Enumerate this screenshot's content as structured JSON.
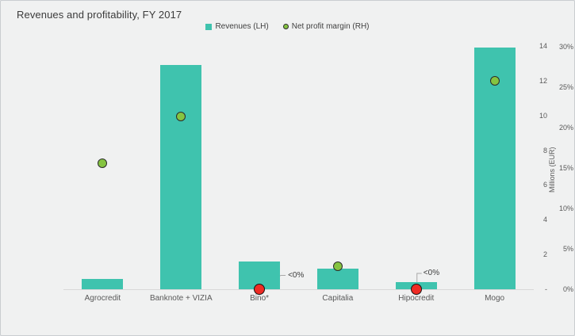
{
  "header": {
    "title": "Revenues and profitability, FY 2017"
  },
  "legend": {
    "items": [
      {
        "label": "Revenues (LH)",
        "marker": "square"
      },
      {
        "label": "Net profit margin (RH)",
        "marker": "circle"
      }
    ]
  },
  "right_axis": {
    "title": "Millions (EUR)",
    "eur_ticks": [
      {
        "label": "14",
        "value": 14
      },
      {
        "label": "12",
        "value": 12
      },
      {
        "label": "10",
        "value": 10
      },
      {
        "label": "8",
        "value": 8
      },
      {
        "label": "6",
        "value": 6
      },
      {
        "label": "4",
        "value": 4
      },
      {
        "label": "2",
        "value": 2
      },
      {
        "label": "-",
        "value": 0
      }
    ],
    "pct_ticks": [
      {
        "label": "30%",
        "value": 30
      },
      {
        "label": "25%",
        "value": 25
      },
      {
        "label": "20%",
        "value": 20
      },
      {
        "label": "15%",
        "value": 15
      },
      {
        "label": "10%",
        "value": 10
      },
      {
        "label": "5%",
        "value": 5
      },
      {
        "label": "0%",
        "value": 0
      }
    ]
  },
  "chart_data": {
    "type": "bar",
    "subtype": "bar + scatter combo with dual right-hand scales",
    "title": "Revenues and profitability, FY 2017",
    "categories": [
      "Agrocredit",
      "Banknote + VIZIA",
      "Bino*",
      "Capitalia",
      "Hipocredit",
      "Mogo"
    ],
    "series": [
      {
        "name": "Revenues (LH)",
        "type": "bar",
        "unit": "millions EUR",
        "values": [
          0.6,
          12.9,
          1.6,
          1.2,
          0.4,
          13.9
        ]
      },
      {
        "name": "Net profit margin (RH)",
        "type": "scatter",
        "unit": "percent",
        "values": [
          15.6,
          21.4,
          null,
          2.8,
          null,
          25.8
        ],
        "negative_points": [
          {
            "index": 2,
            "category": "Bino*",
            "label": "<0%",
            "callout": "diagonal"
          },
          {
            "index": 4,
            "category": "Hipocredit",
            "label": "<0%",
            "callout": "elbow"
          }
        ]
      }
    ],
    "left_axis_range": [
      0,
      14
    ],
    "right_axis_range": [
      0,
      30
    ],
    "grid": false,
    "legend_position": "top-center"
  },
  "colors": {
    "bar": "#3fc3ae",
    "positive_dot": "#85c441",
    "negative_dot": "#ee2b24",
    "dot_outline": "#2b2b2b",
    "background": "#f0f1f1",
    "baseline": "#d8d8d8",
    "leader_line": "#a8a8a8",
    "title_text": "#3b3b3b",
    "axis_text": "#595959"
  }
}
